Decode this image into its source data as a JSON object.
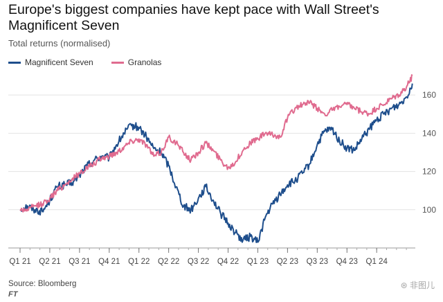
{
  "header": {
    "title": "Europe's biggest companies have kept pace with Wall Street's Magnificent Seven",
    "subtitle": "Total returns (normalised)"
  },
  "legend": [
    {
      "label": "Magnificent Seven",
      "color": "#1e4e8c"
    },
    {
      "label": "Granolas",
      "color": "#e06b8f"
    }
  ],
  "footer": {
    "source": "Source: Bloomberg",
    "logo": "FT",
    "watermark": "⊛ 非图儿"
  },
  "chart_data": {
    "type": "line",
    "title": "Europe's biggest companies have kept pace with Wall Street's Magnificent Seven",
    "ylabel": "Total returns (normalised)",
    "xlabel": "",
    "ylim": [
      80,
      172
    ],
    "yticks": [
      100,
      120,
      140,
      160
    ],
    "y_axis_side": "right",
    "grid": "horizontal",
    "xlim": [
      0,
      13.3
    ],
    "x_tick_labels": [
      "Q1 21",
      "Q2 21",
      "Q3 21",
      "Q4 21",
      "Q1 22",
      "Q2 22",
      "Q3 22",
      "Q4 22",
      "Q1 23",
      "Q2 23",
      "Q3 23",
      "Q4 23",
      "Q1 24"
    ],
    "series": [
      {
        "name": "Magnificent Seven",
        "color": "#1e4e8c",
        "x": [
          0,
          0.25,
          0.5,
          0.75,
          1,
          1.25,
          1.5,
          1.75,
          2,
          2.25,
          2.5,
          2.75,
          3,
          3.25,
          3.5,
          3.75,
          4,
          4.25,
          4.5,
          4.75,
          5,
          5.25,
          5.5,
          5.75,
          6,
          6.25,
          6.5,
          6.75,
          7,
          7.25,
          7.5,
          7.75,
          8,
          8.25,
          8.5,
          8.75,
          9,
          9.25,
          9.5,
          9.75,
          10,
          10.25,
          10.5,
          10.75,
          11,
          11.25,
          11.5,
          11.75,
          12,
          12.25,
          12.5,
          12.75,
          13,
          13.2
        ],
        "values": [
          100,
          102,
          100,
          99,
          105,
          112,
          113,
          114,
          118,
          123,
          126,
          128,
          127,
          134,
          140,
          144,
          143,
          138,
          132,
          130,
          123,
          112,
          102,
          100,
          106,
          112,
          105,
          98,
          93,
          88,
          84,
          86,
          83,
          96,
          103,
          108,
          113,
          115,
          119,
          124,
          134,
          141,
          142,
          136,
          132,
          131,
          137,
          142,
          147,
          150,
          153,
          155,
          159,
          166
        ]
      },
      {
        "name": "Granolas",
        "color": "#e06b8f",
        "x": [
          0,
          0.25,
          0.5,
          0.75,
          1,
          1.25,
          1.5,
          1.75,
          2,
          2.25,
          2.5,
          2.75,
          3,
          3.25,
          3.5,
          3.75,
          4,
          4.25,
          4.5,
          4.75,
          5,
          5.25,
          5.5,
          5.75,
          6,
          6.25,
          6.5,
          6.75,
          7,
          7.25,
          7.5,
          7.75,
          8,
          8.25,
          8.5,
          8.75,
          9,
          9.25,
          9.5,
          9.75,
          10,
          10.25,
          10.5,
          10.75,
          11,
          11.25,
          11.5,
          11.75,
          12,
          12.25,
          12.5,
          12.75,
          13,
          13.2
        ],
        "values": [
          100,
          100,
          102,
          103,
          106,
          110,
          113,
          116,
          119,
          122,
          124,
          127,
          128,
          130,
          133,
          136,
          137,
          134,
          128,
          130,
          138,
          135,
          130,
          126,
          130,
          135,
          131,
          126,
          122,
          125,
          131,
          135,
          137,
          140,
          139,
          138,
          148,
          153,
          155,
          156,
          153,
          150,
          152,
          154,
          155,
          153,
          151,
          150,
          153,
          155,
          158,
          160,
          164,
          170
        ]
      }
    ]
  }
}
